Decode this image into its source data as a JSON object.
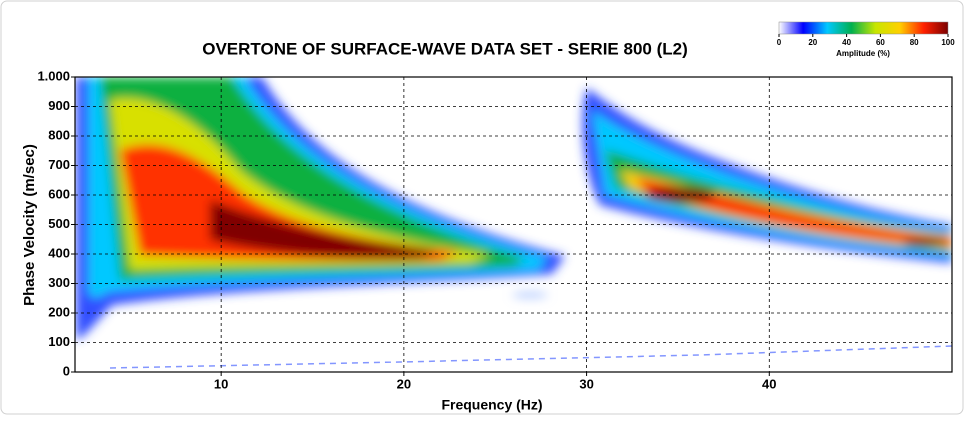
{
  "chart_data": {
    "type": "heatmap",
    "title": "OVERTONE OF SURFACE-WAVE DATA SET - SERIE 800 (L2)",
    "x_label": "Frequency (Hz)",
    "y_label": "Phase Velocity (m/sec)",
    "xlim": [
      2,
      50
    ],
    "xticks": [
      10,
      20,
      30,
      40
    ],
    "ylim": [
      0,
      1000
    ],
    "yticks": [
      0,
      100,
      200,
      300,
      400,
      500,
      600,
      700,
      800,
      900,
      {
        "value": 1000,
        "label": "1.000"
      }
    ],
    "grid": true,
    "colorbar": {
      "label": "Amplitude (%)",
      "lim": [
        0,
        100
      ],
      "ticks": [
        0,
        20,
        40,
        60,
        80,
        100
      ],
      "colors": [
        "#ffffff",
        "#0000ff",
        "#00c8ff",
        "#00b050",
        "#c8e600",
        "#ffd000",
        "#ff2000",
        "#7a0000"
      ]
    }
  }
}
